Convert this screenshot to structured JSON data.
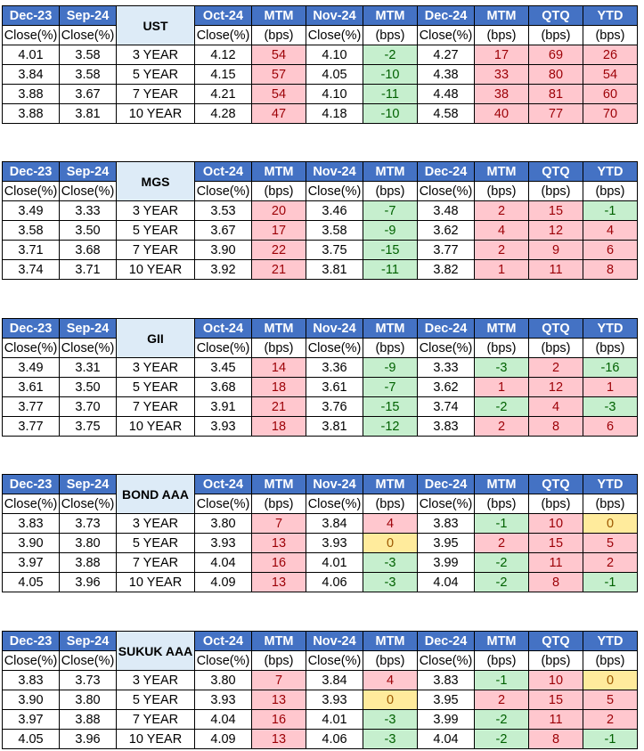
{
  "headers": {
    "top": [
      "Dec-23",
      "Sep-24",
      "Oct-24",
      "MTM",
      "Nov-24",
      "MTM",
      "Dec-24",
      "MTM",
      "QTQ",
      "YTD"
    ],
    "sub": [
      "Close(%)",
      "Close(%)",
      "Close(%)",
      "(bps)",
      "Close(%)",
      "(bps)",
      "Close(%)",
      "(bps)",
      "(bps)",
      "(bps)"
    ]
  },
  "tables": [
    {
      "label": "UST",
      "rows": [
        {
          "dec23": "4.01",
          "sep24": "3.58",
          "tenor": "3 YEAR",
          "oct24": "4.12",
          "mtm1": "54",
          "nov24": "4.10",
          "mtm2": "-2",
          "dec24": "4.27",
          "mtm3": "17",
          "qtq": "69",
          "ytd": "26"
        },
        {
          "dec23": "3.84",
          "sep24": "3.58",
          "tenor": "5 YEAR",
          "oct24": "4.15",
          "mtm1": "57",
          "nov24": "4.05",
          "mtm2": "-10",
          "dec24": "4.38",
          "mtm3": "33",
          "qtq": "80",
          "ytd": "54"
        },
        {
          "dec23": "3.88",
          "sep24": "3.67",
          "tenor": "7 YEAR",
          "oct24": "4.21",
          "mtm1": "54",
          "nov24": "4.10",
          "mtm2": "-11",
          "dec24": "4.48",
          "mtm3": "38",
          "qtq": "81",
          "ytd": "60"
        },
        {
          "dec23": "3.88",
          "sep24": "3.81",
          "tenor": "10 YEAR",
          "oct24": "4.28",
          "mtm1": "47",
          "nov24": "4.18",
          "mtm2": "-10",
          "dec24": "4.58",
          "mtm3": "40",
          "qtq": "77",
          "ytd": "70"
        }
      ]
    },
    {
      "label": "MGS",
      "rows": [
        {
          "dec23": "3.49",
          "sep24": "3.33",
          "tenor": "3 YEAR",
          "oct24": "3.53",
          "mtm1": "20",
          "nov24": "3.46",
          "mtm2": "-7",
          "dec24": "3.48",
          "mtm3": "2",
          "qtq": "15",
          "ytd": "-1"
        },
        {
          "dec23": "3.58",
          "sep24": "3.50",
          "tenor": "5 YEAR",
          "oct24": "3.67",
          "mtm1": "17",
          "nov24": "3.58",
          "mtm2": "-9",
          "dec24": "3.62",
          "mtm3": "4",
          "qtq": "12",
          "ytd": "4"
        },
        {
          "dec23": "3.71",
          "sep24": "3.68",
          "tenor": "7 YEAR",
          "oct24": "3.90",
          "mtm1": "22",
          "nov24": "3.75",
          "mtm2": "-15",
          "dec24": "3.77",
          "mtm3": "2",
          "qtq": "9",
          "ytd": "6"
        },
        {
          "dec23": "3.74",
          "sep24": "3.71",
          "tenor": "10 YEAR",
          "oct24": "3.92",
          "mtm1": "21",
          "nov24": "3.81",
          "mtm2": "-11",
          "dec24": "3.82",
          "mtm3": "1",
          "qtq": "11",
          "ytd": "8"
        }
      ]
    },
    {
      "label": "GII",
      "rows": [
        {
          "dec23": "3.49",
          "sep24": "3.31",
          "tenor": "3 YEAR",
          "oct24": "3.45",
          "mtm1": "14",
          "nov24": "3.36",
          "mtm2": "-9",
          "dec24": "3.33",
          "mtm3": "-3",
          "qtq": "2",
          "ytd": "-16"
        },
        {
          "dec23": "3.61",
          "sep24": "3.50",
          "tenor": "5 YEAR",
          "oct24": "3.68",
          "mtm1": "18",
          "nov24": "3.61",
          "mtm2": "-7",
          "dec24": "3.62",
          "mtm3": "1",
          "qtq": "12",
          "ytd": "1"
        },
        {
          "dec23": "3.77",
          "sep24": "3.70",
          "tenor": "7 YEAR",
          "oct24": "3.91",
          "mtm1": "21",
          "nov24": "3.76",
          "mtm2": "-15",
          "dec24": "3.74",
          "mtm3": "-2",
          "qtq": "4",
          "ytd": "-3"
        },
        {
          "dec23": "3.77",
          "sep24": "3.75",
          "tenor": "10 YEAR",
          "oct24": "3.93",
          "mtm1": "18",
          "nov24": "3.81",
          "mtm2": "-12",
          "dec24": "3.83",
          "mtm3": "2",
          "qtq": "8",
          "ytd": "6"
        }
      ]
    },
    {
      "label": "BOND AAA",
      "rows": [
        {
          "dec23": "3.83",
          "sep24": "3.73",
          "tenor": "3 YEAR",
          "oct24": "3.80",
          "mtm1": "7",
          "nov24": "3.84",
          "mtm2": "4",
          "dec24": "3.83",
          "mtm3": "-1",
          "qtq": "10",
          "ytd": "0"
        },
        {
          "dec23": "3.90",
          "sep24": "3.80",
          "tenor": "5 YEAR",
          "oct24": "3.93",
          "mtm1": "13",
          "nov24": "3.93",
          "mtm2": "0",
          "dec24": "3.95",
          "mtm3": "2",
          "qtq": "15",
          "ytd": "5"
        },
        {
          "dec23": "3.97",
          "sep24": "3.88",
          "tenor": "7 YEAR",
          "oct24": "4.04",
          "mtm1": "16",
          "nov24": "4.01",
          "mtm2": "-3",
          "dec24": "3.99",
          "mtm3": "-2",
          "qtq": "11",
          "ytd": "2"
        },
        {
          "dec23": "4.05",
          "sep24": "3.96",
          "tenor": "10 YEAR",
          "oct24": "4.09",
          "mtm1": "13",
          "nov24": "4.06",
          "mtm2": "-3",
          "dec24": "4.04",
          "mtm3": "-2",
          "qtq": "8",
          "ytd": "-1"
        }
      ]
    },
    {
      "label": "SUKUK AAA",
      "rows": [
        {
          "dec23": "3.83",
          "sep24": "3.73",
          "tenor": "3 YEAR",
          "oct24": "3.80",
          "mtm1": "7",
          "nov24": "3.84",
          "mtm2": "4",
          "dec24": "3.83",
          "mtm3": "-1",
          "qtq": "10",
          "ytd": "0"
        },
        {
          "dec23": "3.90",
          "sep24": "3.80",
          "tenor": "5 YEAR",
          "oct24": "3.93",
          "mtm1": "13",
          "nov24": "3.93",
          "mtm2": "0",
          "dec24": "3.95",
          "mtm3": "2",
          "qtq": "15",
          "ytd": "5"
        },
        {
          "dec23": "3.97",
          "sep24": "3.88",
          "tenor": "7 YEAR",
          "oct24": "4.04",
          "mtm1": "16",
          "nov24": "4.01",
          "mtm2": "-3",
          "dec24": "3.99",
          "mtm3": "-2",
          "qtq": "11",
          "ytd": "2"
        },
        {
          "dec23": "4.05",
          "sep24": "3.96",
          "tenor": "10 YEAR",
          "oct24": "4.09",
          "mtm1": "13",
          "nov24": "4.06",
          "mtm2": "-3",
          "dec24": "4.04",
          "mtm3": "-2",
          "qtq": "8",
          "ytd": "-1"
        }
      ]
    }
  ],
  "colors": {
    "header": "#4472c4",
    "label": "#ddebf7",
    "positive_fill": "#ffc7ce",
    "negative_fill": "#c6efce",
    "zero_fill": "#ffeb9c"
  }
}
